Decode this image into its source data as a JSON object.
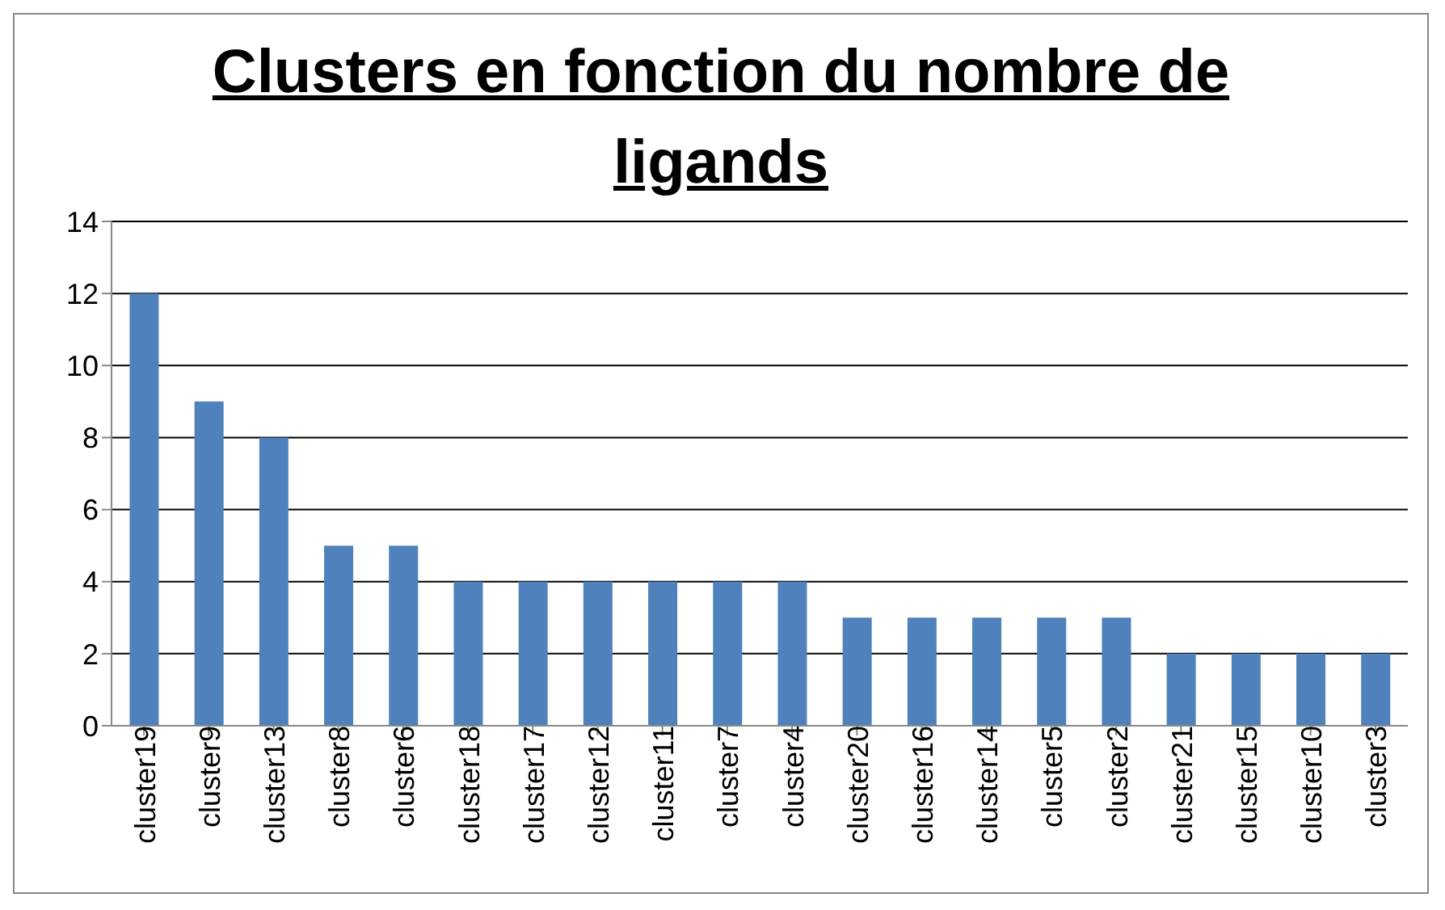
{
  "chart_data": {
    "type": "bar",
    "title": "Clusters en fonction du nombre de ligands",
    "categories": [
      "cluster19",
      "cluster9",
      "cluster13",
      "cluster8",
      "cluster6",
      "cluster18",
      "cluster17",
      "cluster12",
      "cluster11",
      "cluster7",
      "cluster4",
      "cluster20",
      "cluster16",
      "cluster14",
      "cluster5",
      "cluster2",
      "cluster21",
      "cluster15",
      "cluster10",
      "cluster3"
    ],
    "values": [
      12,
      9,
      8,
      5,
      5,
      4,
      4,
      4,
      4,
      4,
      4,
      3,
      3,
      3,
      3,
      3,
      2,
      2,
      2,
      2
    ],
    "color": "#4f81bd",
    "ylim": [
      0,
      14
    ],
    "yticks": [
      0,
      2,
      4,
      6,
      8,
      10,
      12,
      14
    ],
    "grid": "y"
  }
}
